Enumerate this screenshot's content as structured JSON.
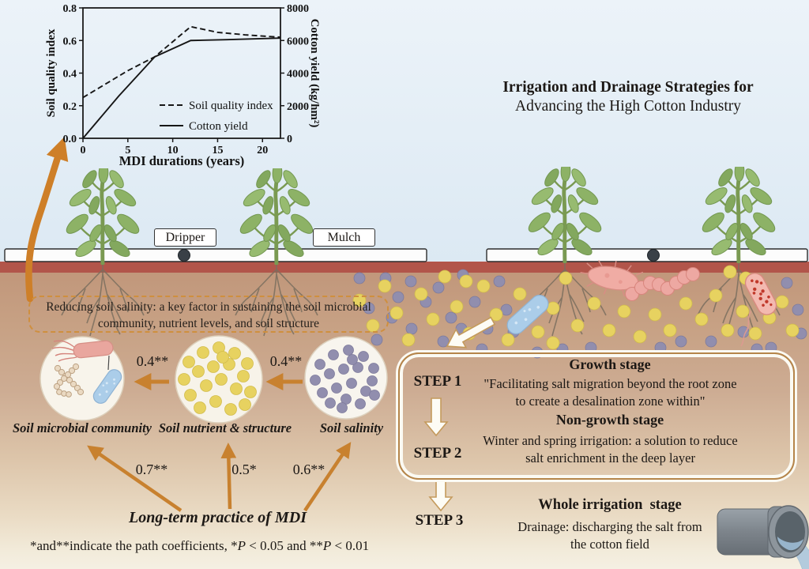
{
  "figure_title": {
    "line1": "Irrigation and Drainage Strategies for",
    "line2": "Advancing the High Cotton Industry"
  },
  "chart_data": {
    "type": "line",
    "xlabel": "MDI durations (years)",
    "ylabel_left": "Soil quality index",
    "ylabel_right": "Cotton yield (kg/hm²)",
    "xlim": [
      0,
      22
    ],
    "x_ticks": [
      0,
      5,
      10,
      15,
      20
    ],
    "ylim_left": [
      0,
      0.8
    ],
    "yticks_left": [
      "0.0",
      "0.2",
      "0.4",
      "0.6",
      "0.8"
    ],
    "ylim_right": [
      0,
      8000
    ],
    "yticks_right": [
      "0",
      "2000",
      "4000",
      "6000",
      "8000"
    ],
    "grid": false,
    "legend_position": "inside lower right",
    "series": [
      {
        "name": "Soil quality index",
        "style": "dashed",
        "axis": "left",
        "x": [
          0,
          5,
          8,
          12,
          15,
          18,
          22
        ],
        "y": [
          0.25,
          0.415,
          0.5,
          0.685,
          0.65,
          0.635,
          0.62
        ]
      },
      {
        "name": "Cotton yield",
        "style": "solid",
        "axis": "right",
        "x": [
          0,
          4,
          8,
          12,
          16,
          22
        ],
        "y": [
          0,
          2600,
          5000,
          6000,
          6050,
          6150
        ]
      }
    ]
  },
  "field_labels": {
    "dripper": "Dripper",
    "mulch": "Mulch"
  },
  "soil_callout": {
    "line1": "Reducing soil salinity: a key factor in sustaining the soil microbial",
    "line2": "community, nutrient levels, and soil structure"
  },
  "pathway": {
    "nodes": [
      "Soil microbial community",
      "Soil nutrient & structure",
      "Soil salinity"
    ],
    "coefficients": {
      "nutrient_to_microbial": "0.4**",
      "salinity_to_nutrient": "0.4**",
      "mdi_to_microbial": "0.7**",
      "mdi_to_nutrient": "0.5*",
      "mdi_to_salinity": "0.6**"
    },
    "source_label": "Long-term practice of MDI",
    "footnote_parts": [
      "*and**indicate the path coefficients, *",
      "P",
      " < 0.05 and **",
      "P",
      " < 0.01"
    ]
  },
  "steps": {
    "step1_label": "STEP 1",
    "step2_label": "STEP 2",
    "step3_label": "STEP 3",
    "growth_title": "Growth stage",
    "growth_line1": "\"Facilitating salt migration beyond the root zone",
    "growth_line2": "to create a desalination zone within\"",
    "nongrowth_title": "Non-growth stage",
    "nongrowth_line1": "Winter and spring irrigation: a solution to reduce",
    "nongrowth_line2": "salt enrichment in the deep layer",
    "whole_title": "Whole irrigation  stage",
    "whole_line1": "Drainage: discharging the salt from",
    "whole_line2": "the cotton field"
  },
  "colors": {
    "accent_orange": "#c8812f",
    "soil_red": "#b2554a",
    "nutrient_yellow": "#e7d260",
    "salt_purple": "#918eae",
    "microbe_pink": "#e9a69e",
    "microbe_blue": "#abcde9",
    "sky_blue": "#e6eff7"
  }
}
